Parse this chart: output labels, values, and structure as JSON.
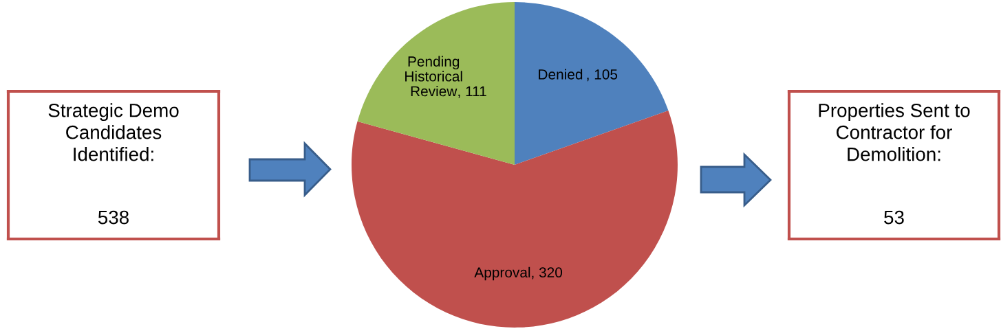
{
  "chart_data": [
    {
      "type": "other",
      "annotations": [
        "Strategic Demo\nCandidates\nIdentified:",
        "538"
      ]
    },
    {
      "type": "pie",
      "categories": [
        "Denied ",
        "Approval",
        "Pending\nHistorical\nReview"
      ],
      "values": [
        105,
        320,
        111
      ],
      "colors": [
        "#4f81bd",
        "#c0504d",
        "#9bbb59"
      ],
      "value_labels": [
        ", 105",
        ", 320",
        ", 111"
      ]
    },
    {
      "type": "other",
      "annotations": [
        "Properties Sent to\nContractor for\nDemolition:",
        "53"
      ]
    }
  ]
}
